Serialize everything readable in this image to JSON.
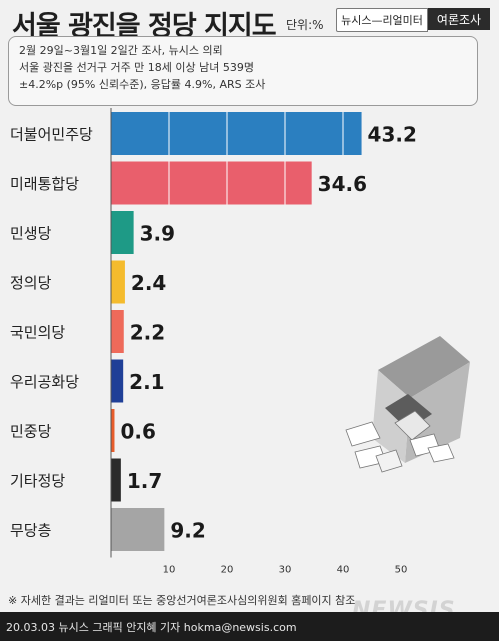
{
  "header": {
    "title": "서울 광진을 정당 지지도",
    "unit": "단위:%",
    "badge_left": "뉴시스—리얼미터",
    "badge_right": "여론조사"
  },
  "survey_info": [
    "2월 29일~3월1일 2일간 조사, 뉴시스 의뢰",
    "서울 광진을 선거구 거주 만 18세 이상 남녀 539명",
    "±4.2%p (95% 신뢰수준), 응답률 4.9%, ARS 조사"
  ],
  "chart_data": {
    "type": "bar",
    "orientation": "horizontal",
    "categories": [
      "더불어민주당",
      "미래통합당",
      "민생당",
      "정의당",
      "국민의당",
      "우리공화당",
      "민중당",
      "기타정당",
      "무당층"
    ],
    "values": [
      43.2,
      34.6,
      3.9,
      2.4,
      2.2,
      2.1,
      0.6,
      1.7,
      9.2
    ],
    "value_labels": [
      "43.2",
      "34.6",
      "3.9",
      "2.4",
      "2.2",
      "2.1",
      "0.6",
      "1.7",
      "9.2"
    ],
    "colors": [
      "#2b7fc0",
      "#e95f6c",
      "#1e9a86",
      "#f4bb2d",
      "#ee6a5a",
      "#1f3f97",
      "#e85d2c",
      "#2b2b2b",
      "#a5a5a5"
    ],
    "xticks": [
      10,
      20,
      30,
      40,
      50
    ],
    "xlim": [
      0,
      50
    ],
    "grid": "vertical lines inside bars"
  },
  "footnote": "※ 자세한 결과는 리얼미터 또는 중앙선거여론조사심의위원회 홈페이지 참조",
  "footer": {
    "credit": "20.03.03 뉴시스 그래픽 안지혜 기자 hokma@newsis.com",
    "watermark": "NEWSIS"
  }
}
